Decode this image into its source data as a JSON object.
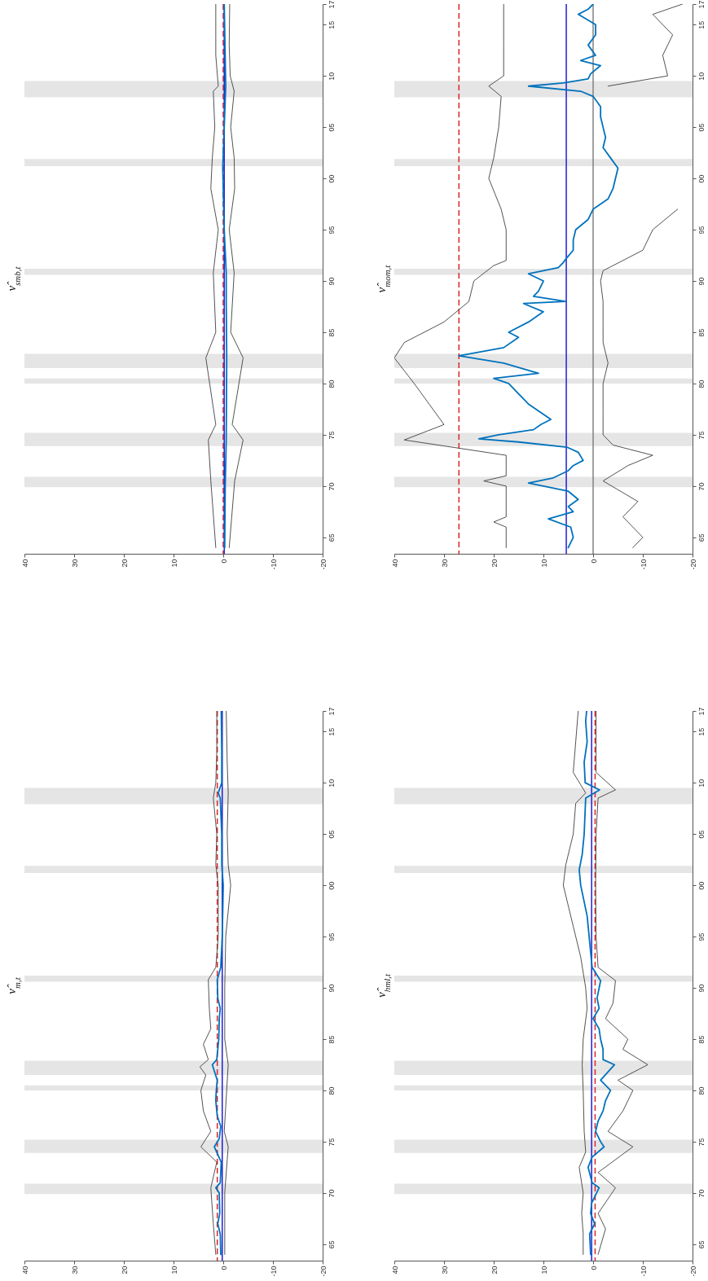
{
  "chart_data": [
    {
      "type": "line",
      "title": "ν̂$_{m,t}$",
      "ylim": [
        1963.4,
        2017
      ],
      "yticks": [
        {
          "value": 1965,
          "label": "65"
        },
        {
          "value": 1970,
          "label": "70"
        },
        {
          "value": 1975,
          "label": "75"
        },
        {
          "value": 1980,
          "label": "80"
        },
        {
          "value": 1985,
          "label": "85"
        },
        {
          "value": 1990,
          "label": "90"
        },
        {
          "value": 1995,
          "label": "95"
        },
        {
          "value": 2000,
          "label": "00"
        },
        {
          "value": 2005,
          "label": "05"
        },
        {
          "value": 2010,
          "label": "10"
        },
        {
          "value": 2015,
          "label": "15"
        },
        {
          "value": 2017,
          "label": "17"
        }
      ],
      "xlim": [
        40,
        -20
      ],
      "xticks": [
        40,
        30,
        20,
        10,
        0,
        -10,
        -20
      ],
      "bands": [
        {
          "axis": "y",
          "from": 1969.9,
          "to": 1970.9,
          "color": "#e5e5e5"
        },
        {
          "axis": "y",
          "from": 1973.9,
          "to": 1975.2,
          "color": "#e5e5e5"
        },
        {
          "axis": "y",
          "from": 1980.0,
          "to": 1980.5,
          "color": "#e5e5e5"
        },
        {
          "axis": "y",
          "from": 1981.5,
          "to": 1982.9,
          "color": "#e5e5e5"
        },
        {
          "axis": "y",
          "from": 1990.6,
          "to": 1991.2,
          "color": "#e5e5e5"
        },
        {
          "axis": "y",
          "from": 2001.2,
          "to": 2001.9,
          "color": "#e5e5e5"
        },
        {
          "axis": "y",
          "from": 2007.9,
          "to": 2009.5,
          "color": "#e5e5e5"
        }
      ],
      "ref_lines": [
        {
          "axis": "x",
          "value": 1.2,
          "color": "#d9262b",
          "line_style": "dashed"
        },
        {
          "axis": "x",
          "value": 0.2,
          "color": "#1f1fd6",
          "line_style": "solid"
        }
      ],
      "series": [
        {
          "color": "#404040",
          "values": [
            1964,
            1967,
            1970.5,
            1973,
            1974.5,
            1976,
            1978,
            1980,
            1981.5,
            1982.3,
            1983,
            1984.5,
            1986,
            1988,
            1990.8,
            1992,
            1995,
            2000,
            2002,
            2005,
            2008.5,
            2010,
            2013,
            2017
          ],
          "x": [
            1.5,
            2,
            2.5,
            1.3,
            4.5,
            2.5,
            4,
            4.5,
            3.5,
            4.7,
            3,
            4,
            2.5,
            2.8,
            3,
            1.5,
            1.0,
            1.0,
            1.5,
            1.3,
            2,
            1.5,
            1.3,
            1.3
          ]
        },
        {
          "color": "#404040",
          "values": [
            1964,
            1970,
            1974.5,
            1976,
            1982.5,
            1985,
            1990,
            1995,
            2000,
            2002,
            2005,
            2009,
            2012,
            2017
          ],
          "x": [
            -0.3,
            -0.3,
            -1,
            -0.2,
            -1,
            -0.3,
            -0.3,
            -0.5,
            -1.5,
            -1,
            -0.8,
            -1,
            -0.8,
            -0.6
          ]
        },
        {
          "color": "#0072bd",
          "values": [
            1964,
            1966,
            1967,
            1968,
            1970,
            1970.5,
            1971,
            1973,
            1974.5,
            1975.3,
            1976.5,
            1977.5,
            1979,
            1980,
            1981,
            1982.5,
            1983,
            1985,
            1987,
            1988,
            1989,
            1990.8,
            1992,
            1995,
            2000,
            2002,
            2005,
            2008.5,
            2009,
            2010,
            2013,
            2017
          ],
          "x": [
            0.5,
            0.6,
            1.1,
            0.7,
            0.8,
            1.5,
            0.6,
            0.4,
            1.8,
            0.8,
            0.5,
            1.2,
            1.5,
            1.4,
            1.2,
            2.2,
            1.3,
            0.9,
            0.8,
            0.6,
            1.1,
            1.2,
            0.5,
            0.2,
            0.0,
            0.3,
            0.3,
            0.6,
            1.0,
            0.3,
            0.3,
            0.4
          ]
        }
      ]
    },
    {
      "type": "line",
      "title": "ν̂$_{smb,t}$",
      "ylim": [
        1963.4,
        2017
      ],
      "yticks": [
        {
          "value": 1965,
          "label": "65"
        },
        {
          "value": 1970,
          "label": "70"
        },
        {
          "value": 1975,
          "label": "75"
        },
        {
          "value": 1980,
          "label": "80"
        },
        {
          "value": 1985,
          "label": "85"
        },
        {
          "value": 1990,
          "label": "90"
        },
        {
          "value": 1995,
          "label": "95"
        },
        {
          "value": 2000,
          "label": "00"
        },
        {
          "value": 2005,
          "label": "05"
        },
        {
          "value": 2010,
          "label": "10"
        },
        {
          "value": 2015,
          "label": "15"
        },
        {
          "value": 2017,
          "label": "17"
        }
      ],
      "xlim": [
        40,
        -20
      ],
      "xticks": [
        40,
        30,
        20,
        10,
        0,
        -10,
        -20
      ],
      "bands": [
        {
          "axis": "y",
          "from": 1969.9,
          "to": 1970.9,
          "color": "#e5e5e5"
        },
        {
          "axis": "y",
          "from": 1973.9,
          "to": 1975.2,
          "color": "#e5e5e5"
        },
        {
          "axis": "y",
          "from": 1980.0,
          "to": 1980.5,
          "color": "#e5e5e5"
        },
        {
          "axis": "y",
          "from": 1981.5,
          "to": 1982.9,
          "color": "#e5e5e5"
        },
        {
          "axis": "y",
          "from": 1990.6,
          "to": 1991.2,
          "color": "#e5e5e5"
        },
        {
          "axis": "y",
          "from": 2001.2,
          "to": 2001.9,
          "color": "#e5e5e5"
        },
        {
          "axis": "y",
          "from": 2007.9,
          "to": 2009.5,
          "color": "#e5e5e5"
        }
      ],
      "ref_lines": [
        {
          "axis": "x",
          "value": 0,
          "color": "#d9262b",
          "line_style": "dashed"
        },
        {
          "axis": "x",
          "value": -0.2,
          "color": "#1f1fd6",
          "line_style": "solid"
        }
      ],
      "series": [
        {
          "color": "#404040",
          "values": [
            1964,
            1970.5,
            1974.5,
            1976,
            1982.5,
            1985,
            1990.8,
            1995,
            1999,
            2002,
            2005,
            2008.5,
            2009,
            2012,
            2017
          ],
          "x": [
            1.5,
            2.5,
            3,
            1.5,
            3.5,
            1.5,
            2,
            1.0,
            2.5,
            2.2,
            1.7,
            2.0,
            1.0,
            1.5,
            1.5
          ]
        },
        {
          "color": "#404040",
          "values": [
            1964,
            1970.5,
            1974.5,
            1976,
            1982.5,
            1985,
            1990.8,
            1995,
            1999,
            2002,
            2005,
            2008.5,
            2010,
            2013,
            2017
          ],
          "x": [
            -1.2,
            -2.3,
            -4,
            -1.8,
            -4,
            -1.5,
            -2.2,
            -1.2,
            -2.3,
            -2.2,
            -1.5,
            -2.2,
            -1.4,
            -1.2,
            -1.3
          ]
        },
        {
          "color": "#0072bd",
          "values": [
            1964,
            1970,
            1974.5,
            1982.5,
            1988,
            1990.8,
            1995,
            2001,
            2005,
            2009,
            2017
          ],
          "x": [
            -0.3,
            -0.4,
            -0.6,
            -0.7,
            -0.6,
            -0.6,
            -0.2,
            0.1,
            -0.2,
            -0.5,
            -0.2
          ]
        }
      ]
    },
    {
      "type": "line",
      "title": "ν̂$_{hml,t}$",
      "ylim": [
        1963.4,
        2017
      ],
      "yticks": [
        {
          "value": 1965,
          "label": "65"
        },
        {
          "value": 1970,
          "label": "70"
        },
        {
          "value": 1975,
          "label": "75"
        },
        {
          "value": 1980,
          "label": "80"
        },
        {
          "value": 1985,
          "label": "85"
        },
        {
          "value": 1990,
          "label": "90"
        },
        {
          "value": 1995,
          "label": "95"
        },
        {
          "value": 2000,
          "label": "00"
        },
        {
          "value": 2005,
          "label": "05"
        },
        {
          "value": 2010,
          "label": "10"
        },
        {
          "value": 2015,
          "label": "15"
        },
        {
          "value": 2017,
          "label": "17"
        }
      ],
      "xlim": [
        40,
        -20
      ],
      "xticks": [
        40,
        30,
        20,
        10,
        0,
        -10,
        -20
      ],
      "bands": [
        {
          "axis": "y",
          "from": 1969.9,
          "to": 1970.9,
          "color": "#e5e5e5"
        },
        {
          "axis": "y",
          "from": 1973.9,
          "to": 1975.2,
          "color": "#e5e5e5"
        },
        {
          "axis": "y",
          "from": 1980.0,
          "to": 1980.5,
          "color": "#e5e5e5"
        },
        {
          "axis": "y",
          "from": 1981.5,
          "to": 1982.9,
          "color": "#e5e5e5"
        },
        {
          "axis": "y",
          "from": 1990.6,
          "to": 1991.2,
          "color": "#e5e5e5"
        },
        {
          "axis": "y",
          "from": 2001.2,
          "to": 2001.9,
          "color": "#e5e5e5"
        },
        {
          "axis": "y",
          "from": 2007.9,
          "to": 2009.5,
          "color": "#e5e5e5"
        }
      ],
      "ref_lines": [
        {
          "axis": "x",
          "value": -0.4,
          "color": "#d9262b",
          "line_style": "dashed"
        },
        {
          "axis": "x",
          "value": 0.3,
          "color": "#1f1fd6",
          "line_style": "solid"
        }
      ],
      "series": [
        {
          "color": "#404040",
          "values": [
            1964,
            1966,
            1968,
            1970,
            1972.5,
            1974,
            1976,
            1980,
            1982.5,
            1985,
            1988,
            1990,
            1993,
            1996,
            2000,
            2002,
            2005,
            2008,
            2009,
            2011,
            2014,
            2017
          ],
          "x": [
            2,
            2,
            2.3,
            2,
            2.8,
            1.5,
            1.8,
            2,
            2.2,
            2,
            1.2,
            1.5,
            2.5,
            4,
            6,
            5.5,
            4,
            3.5,
            1.5,
            4,
            3.5,
            3
          ]
        },
        {
          "color": "#404040",
          "values": [
            1964,
            1966.5,
            1968,
            1970.5,
            1972,
            1974.5,
            1976,
            1978,
            1980,
            1981,
            1982.5,
            1984,
            1985,
            1987,
            1988.5,
            1990.7,
            1992,
            1995,
            2000,
            2005,
            2008.5,
            2009.3,
            2011,
            2017
          ],
          "x": [
            -1,
            -2.5,
            -1,
            -4.5,
            -1,
            -8,
            -3,
            -6,
            -8,
            -5,
            -11,
            -6,
            -7,
            -2.5,
            -4,
            -4.5,
            -1,
            -0.6,
            -0.5,
            -0.6,
            -1,
            -4.5,
            -0.6,
            -0.6
          ]
        },
        {
          "color": "#0072bd",
          "values": [
            1964,
            1966,
            1967,
            1968,
            1969,
            1970.5,
            1971,
            1972.5,
            1973.5,
            1974.5,
            1975,
            1976,
            1977,
            1978,
            1979,
            1980,
            1981,
            1982.5,
            1983,
            1984,
            1985,
            1986,
            1987,
            1988,
            1989,
            1990.7,
            1992,
            1994,
            1997,
            2000,
            2001.5,
            2003,
            2005,
            2008.5,
            2009.3,
            2010,
            2012,
            2014,
            2016,
            2017
          ],
          "x": [
            0.5,
            0.7,
            -0.3,
            0.5,
            0.3,
            -1.2,
            0.2,
            1.0,
            0.2,
            -2.2,
            -1.5,
            -0.5,
            -1,
            -2,
            -2.5,
            -3.5,
            -1.5,
            -4.3,
            -2,
            -2,
            -1.5,
            -1.2,
            0,
            -1.2,
            -0.8,
            -1.5,
            0.2,
            0.6,
            1.2,
            2.5,
            2.8,
            2.2,
            1.8,
            1.5,
            -1.3,
            1.6,
            1.8,
            1.2,
            1.5,
            1.3
          ]
        }
      ]
    },
    {
      "type": "line",
      "title": "ν̂$_{mom,t}$",
      "ylim": [
        1963.4,
        2017
      ],
      "yticks": [
        {
          "value": 1965,
          "label": "65"
        },
        {
          "value": 1970,
          "label": "70"
        },
        {
          "value": 1975,
          "label": "75"
        },
        {
          "value": 1980,
          "label": "80"
        },
        {
          "value": 1985,
          "label": "85"
        },
        {
          "value": 1990,
          "label": "90"
        },
        {
          "value": 1995,
          "label": "95"
        },
        {
          "value": 2000,
          "label": "00"
        },
        {
          "value": 2005,
          "label": "05"
        },
        {
          "value": 2010,
          "label": "10"
        },
        {
          "value": 2015,
          "label": "15"
        },
        {
          "value": 2017,
          "label": "17"
        }
      ],
      "xlim": [
        40,
        -20
      ],
      "xticks": [
        40,
        30,
        20,
        10,
        0,
        -10,
        -20
      ],
      "bands": [
        {
          "axis": "y",
          "from": 1969.9,
          "to": 1970.9,
          "color": "#e5e5e5"
        },
        {
          "axis": "y",
          "from": 1973.9,
          "to": 1975.2,
          "color": "#e5e5e5"
        },
        {
          "axis": "y",
          "from": 1980.0,
          "to": 1980.5,
          "color": "#e5e5e5"
        },
        {
          "axis": "y",
          "from": 1981.5,
          "to": 1982.9,
          "color": "#e5e5e5"
        },
        {
          "axis": "y",
          "from": 1990.6,
          "to": 1991.2,
          "color": "#e5e5e5"
        },
        {
          "axis": "y",
          "from": 2001.2,
          "to": 2001.9,
          "color": "#e5e5e5"
        },
        {
          "axis": "y",
          "from": 2007.9,
          "to": 2009.5,
          "color": "#e5e5e5"
        }
      ],
      "ref_lines": [
        {
          "axis": "x",
          "value": 27,
          "color": "#d9262b",
          "line_style": "dashed"
        },
        {
          "axis": "x",
          "value": 5.4,
          "color": "#1f1fd6",
          "line_style": "solid"
        },
        {
          "axis": "x",
          "value": 0,
          "color": "#808080",
          "line_style": "solid"
        }
      ],
      "series": [
        {
          "color": "#404040",
          "values": [
            1964,
            1966,
            1966.5,
            1967,
            1970,
            1970.5,
            1971,
            1973,
            1974.5,
            1976,
            1978,
            1980,
            1982.5,
            1984,
            1986,
            1988,
            1990,
            1991.5,
            1992,
            1995,
            1997,
            2000,
            2002,
            2005,
            2008,
            2009,
            2010,
            2013,
            2017
          ],
          "x": [
            17.5,
            17.5,
            20,
            17.5,
            17.5,
            22,
            17.5,
            17.5,
            38,
            30,
            33,
            36,
            40,
            38,
            30,
            25,
            24,
            20,
            17.5,
            17.5,
            18.5,
            21,
            20,
            19,
            18.5,
            21,
            18,
            18,
            18
          ]
        },
        {
          "color": "#404040",
          "values": [
            1964,
            1965,
            1967,
            1968.5,
            1970.5,
            1972,
            1973,
            1974,
            1975,
            1977,
            1980,
            1982,
            1984,
            1986,
            1988,
            1990,
            1991,
            1993,
            1995,
            1997,
            null,
            null,
            2009,
            2010,
            2012,
            2014,
            2016,
            2017
          ],
          "x": [
            -8,
            -10,
            -6,
            -9,
            -2,
            -7,
            -12,
            -4,
            -2,
            -2,
            -2,
            -3,
            -2,
            -2,
            -2,
            -1.5,
            -2,
            -10,
            -12,
            -17,
            null,
            null,
            -3,
            -15,
            -14,
            -16,
            -12,
            -18
          ]
        },
        {
          "color": "#0072bd",
          "values": [
            1964,
            1965,
            1966,
            1966.8,
            1967.5,
            1968,
            1968.7,
            1969.5,
            1970.3,
            1970.8,
            1971.5,
            1972,
            1972.5,
            1973.3,
            1973.8,
            1974.3,
            1974.6,
            1975,
            1975.5,
            1976,
            1976.5,
            1977,
            1978,
            1979,
            1980,
            1980.5,
            1981,
            1982,
            1982.7,
            1983.5,
            1984.5,
            1985,
            1986,
            1987,
            1987.8,
            1988,
            1988.5,
            1989,
            1990,
            1990.7,
            1991.3,
            1991.8,
            1992.2,
            1993,
            1994,
            1995,
            1996,
            1997,
            1998,
            1999,
            2000,
            2001,
            2002,
            2003,
            2004,
            2005,
            2006,
            2007,
            2008,
            2008.5,
            2009,
            2009.3,
            2009.7,
            2010.2,
            2011,
            2011.5,
            2012,
            2013,
            2014,
            2015,
            2016,
            2016.5,
            2017
          ],
          "x": [
            5,
            4,
            4.5,
            9,
            4,
            5,
            3,
            5,
            13,
            8,
            5,
            4,
            2,
            3,
            5.3,
            15,
            23,
            19,
            12,
            10.5,
            8.5,
            10,
            13,
            15,
            17,
            20,
            11,
            18,
            27,
            18,
            15,
            17,
            13,
            10,
            14,
            5.5,
            12,
            11,
            10,
            13,
            7,
            6,
            5.4,
            4,
            4,
            3.5,
            1,
            0,
            -3,
            -4,
            -4.5,
            -5,
            -3.5,
            -2,
            -2.5,
            -2,
            -1.5,
            -1.5,
            0,
            2.5,
            13,
            6,
            1,
            0.5,
            -1.5,
            2.5,
            -0.5,
            1,
            -0.5,
            -0.5,
            3,
            1,
            0
          ]
        }
      ]
    }
  ]
}
